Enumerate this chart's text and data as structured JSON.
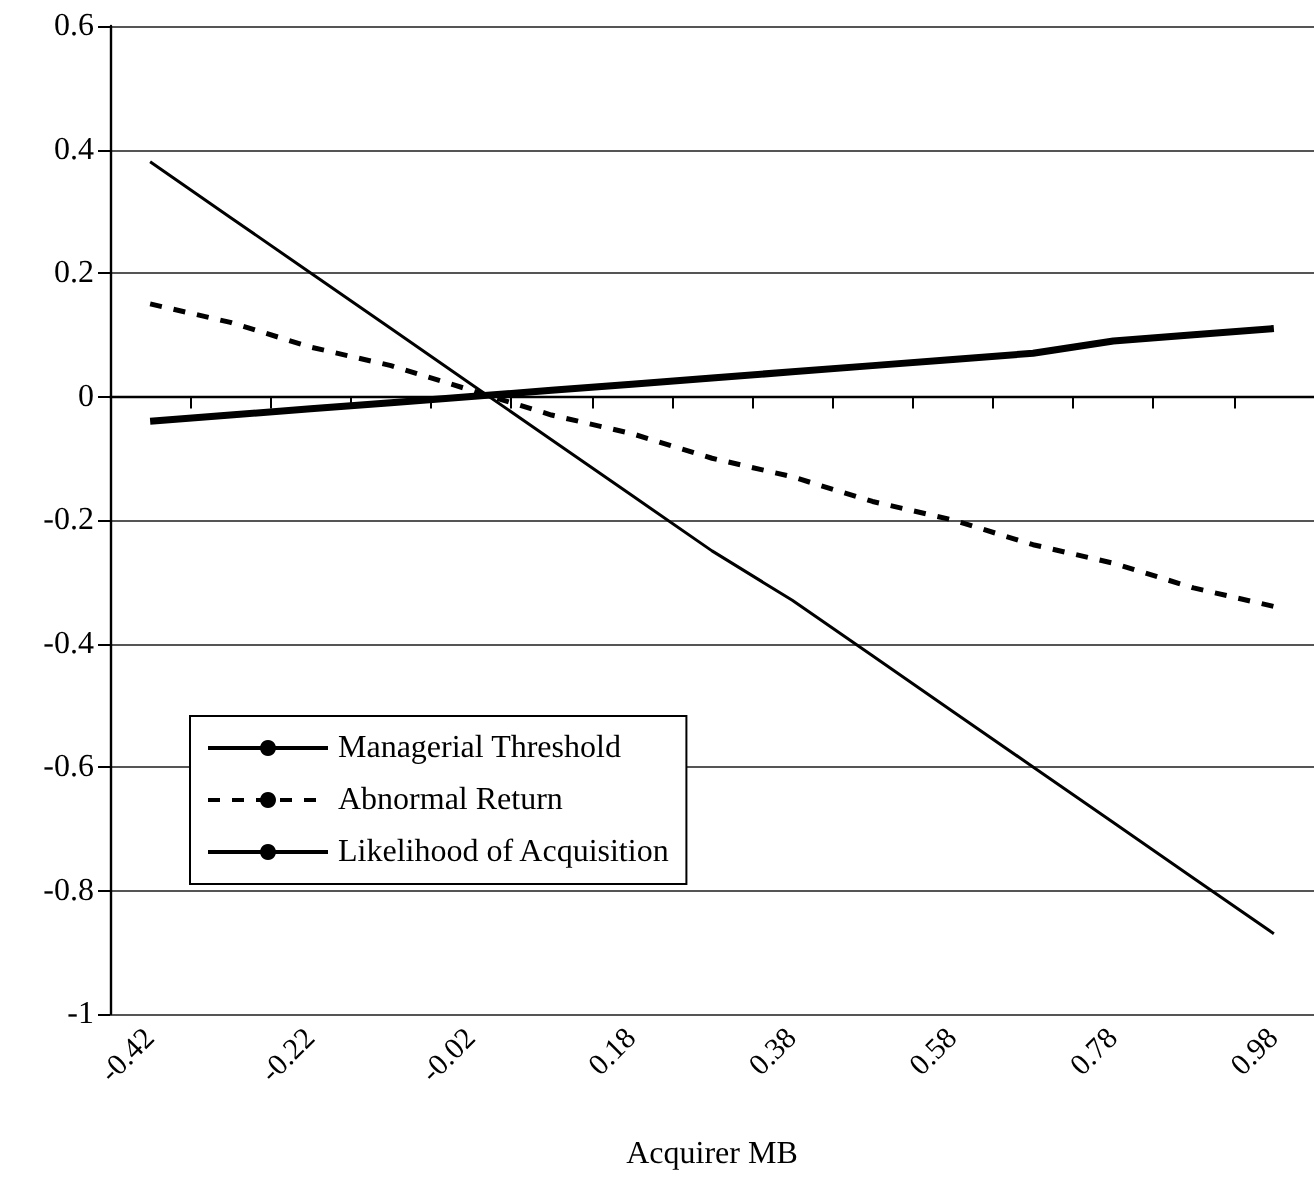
{
  "chart_data": {
    "type": "line",
    "xlabel": "Acquirer MB",
    "categories": [
      "-0.42",
      null,
      "-0.22",
      null,
      "-0.02",
      null,
      "0.18",
      null,
      "0.38",
      null,
      "0.58",
      null,
      "0.78",
      null,
      "0.98"
    ],
    "series": [
      {
        "name": "Managerial Threshold",
        "color": "#000000",
        "line_style": "solid",
        "values": [
          0.38,
          0.29,
          0.2,
          0.11,
          0.02,
          -0.07,
          -0.16,
          -0.25,
          -0.33,
          -0.42,
          -0.51,
          -0.6,
          -0.69,
          -0.78,
          -0.87
        ]
      },
      {
        "name": "Abnormal Return",
        "color": "#000000",
        "line_style": "dashed",
        "values": [
          0.15,
          0.12,
          0.08,
          0.05,
          0.01,
          -0.03,
          -0.06,
          -0.1,
          -0.13,
          -0.17,
          -0.2,
          -0.24,
          -0.27,
          -0.31,
          -0.34
        ]
      },
      {
        "name": "Likelihood of Acquisition",
        "color": "#000000",
        "line_style": "solid",
        "values": [
          -0.04,
          -0.03,
          -0.02,
          -0.01,
          0.0,
          0.01,
          0.02,
          0.03,
          0.04,
          0.05,
          0.06,
          0.07,
          0.09,
          0.1,
          0.11
        ]
      }
    ],
    "ylim": [
      -1,
      0.6
    ],
    "yticks": [
      -1,
      -0.8,
      -0.6,
      -0.4,
      -0.2,
      0,
      0.2,
      0.4,
      0.6
    ],
    "grid": "y",
    "legend": "bottom left",
    "marker": "none"
  }
}
